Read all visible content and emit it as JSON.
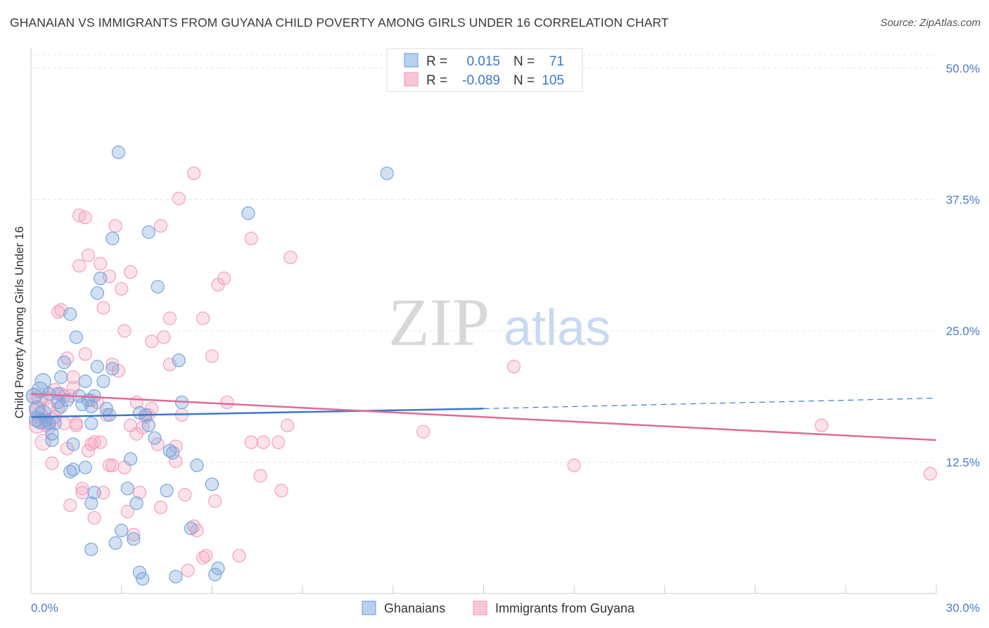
{
  "title": "GHANAIAN VS IMMIGRANTS FROM GUYANA CHILD POVERTY AMONG GIRLS UNDER 16 CORRELATION CHART",
  "source": "Source: ZipAtlas.com",
  "watermark": {
    "zip": "ZIP",
    "atlas": "atlas"
  },
  "chart_data": {
    "type": "scatter",
    "title": "GHANAIAN VS IMMIGRANTS FROM GUYANA CHILD POVERTY AMONG GIRLS UNDER 16 CORRELATION CHART",
    "xlabel": "",
    "ylabel": "Child Poverty Among Girls Under 16",
    "xlim": [
      0,
      30
    ],
    "ylim": [
      0,
      50
    ],
    "x_tick_labels": [
      "0.0%",
      "30.0%"
    ],
    "y_ticks": [
      12.5,
      25.0,
      37.5,
      50.0
    ],
    "y_tick_labels": [
      "12.5%",
      "25.0%",
      "37.5%",
      "50.0%"
    ],
    "grid": true,
    "legend": {
      "placement": "top-center",
      "rows": [
        {
          "r_label": "R =",
          "r_value": "0.015",
          "n_label": "N =",
          "n_value": "71"
        },
        {
          "r_label": "R =",
          "r_value": "-0.089",
          "n_label": "N =",
          "n_value": "105"
        }
      ]
    },
    "series": [
      {
        "name": "Ghanaians",
        "color": "#7aa6dc",
        "line_color": "#3c78c8",
        "trend": {
          "x0": 0,
          "y0": 16.8,
          "x1": 15,
          "y1": 17.6,
          "dashed_to_x": 30,
          "dashed_to_y": 18.6
        },
        "points": [
          [
            0.1,
            18.8
          ],
          [
            0.2,
            17.6
          ],
          [
            0.2,
            16.6
          ],
          [
            0.3,
            16.4
          ],
          [
            0.4,
            20.2
          ],
          [
            0.4,
            17.2
          ],
          [
            0.5,
            16.5
          ],
          [
            0.6,
            19.0
          ],
          [
            0.6,
            16.2
          ],
          [
            0.7,
            15.2
          ],
          [
            0.7,
            14.6
          ],
          [
            0.8,
            16.2
          ],
          [
            0.9,
            19.0
          ],
          [
            0.9,
            18.2
          ],
          [
            1.0,
            17.8
          ],
          [
            1.0,
            20.6
          ],
          [
            1.1,
            22.0
          ],
          [
            1.2,
            18.4
          ],
          [
            1.3,
            26.6
          ],
          [
            1.3,
            11.6
          ],
          [
            1.4,
            11.8
          ],
          [
            1.4,
            14.2
          ],
          [
            1.5,
            24.4
          ],
          [
            1.6,
            18.8
          ],
          [
            1.7,
            18.0
          ],
          [
            1.8,
            12.0
          ],
          [
            1.8,
            20.2
          ],
          [
            1.9,
            18.4
          ],
          [
            2.0,
            16.2
          ],
          [
            2.0,
            17.8
          ],
          [
            2.1,
            18.8
          ],
          [
            2.2,
            21.6
          ],
          [
            2.0,
            8.6
          ],
          [
            2.1,
            9.6
          ],
          [
            2.0,
            4.2
          ],
          [
            2.2,
            28.6
          ],
          [
            2.3,
            30.0
          ],
          [
            2.4,
            20.2
          ],
          [
            2.5,
            17.6
          ],
          [
            2.6,
            17.0
          ],
          [
            2.7,
            33.8
          ],
          [
            2.7,
            21.4
          ],
          [
            2.8,
            4.8
          ],
          [
            2.9,
            42.0
          ],
          [
            3.0,
            6.0
          ],
          [
            3.2,
            10.0
          ],
          [
            3.3,
            12.8
          ],
          [
            3.4,
            5.2
          ],
          [
            3.5,
            8.6
          ],
          [
            3.6,
            17.2
          ],
          [
            3.6,
            2.0
          ],
          [
            3.7,
            1.4
          ],
          [
            3.8,
            17.0
          ],
          [
            3.9,
            16.0
          ],
          [
            3.9,
            34.4
          ],
          [
            4.1,
            14.8
          ],
          [
            4.2,
            29.2
          ],
          [
            4.5,
            9.8
          ],
          [
            4.6,
            13.6
          ],
          [
            4.7,
            13.4
          ],
          [
            4.8,
            1.6
          ],
          [
            4.9,
            22.2
          ],
          [
            5.0,
            18.2
          ],
          [
            5.3,
            6.2
          ],
          [
            5.5,
            12.2
          ],
          [
            6.0,
            10.4
          ],
          [
            6.1,
            1.8
          ],
          [
            6.2,
            2.4
          ],
          [
            7.2,
            36.2
          ],
          [
            11.8,
            40.0
          ],
          [
            0.3,
            19.4
          ]
        ]
      },
      {
        "name": "Immigrants from Guyana",
        "color": "#f4a0bc",
        "line_color": "#e06a98",
        "trend": {
          "x0": 0,
          "y0": 19.0,
          "x1": 30,
          "y1": 14.6
        },
        "points": [
          [
            0.1,
            18.8
          ],
          [
            0.2,
            17.4
          ],
          [
            0.2,
            16.0
          ],
          [
            0.3,
            17.0
          ],
          [
            0.4,
            16.4
          ],
          [
            0.4,
            14.4
          ],
          [
            0.5,
            16.0
          ],
          [
            0.5,
            18.6
          ],
          [
            0.6,
            17.8
          ],
          [
            0.7,
            12.4
          ],
          [
            0.7,
            16.6
          ],
          [
            0.8,
            16.8
          ],
          [
            0.8,
            19.4
          ],
          [
            0.9,
            26.8
          ],
          [
            1.0,
            27.0
          ],
          [
            1.0,
            19.0
          ],
          [
            1.1,
            18.8
          ],
          [
            1.2,
            22.4
          ],
          [
            1.2,
            13.8
          ],
          [
            1.3,
            8.4
          ],
          [
            1.4,
            20.6
          ],
          [
            1.4,
            19.6
          ],
          [
            1.5,
            16.0
          ],
          [
            1.6,
            36.0
          ],
          [
            1.6,
            31.2
          ],
          [
            1.7,
            10.0
          ],
          [
            1.7,
            9.6
          ],
          [
            1.8,
            22.8
          ],
          [
            1.8,
            35.8
          ],
          [
            1.9,
            32.2
          ],
          [
            1.9,
            13.6
          ],
          [
            2.0,
            14.2
          ],
          [
            2.0,
            18.4
          ],
          [
            2.1,
            14.4
          ],
          [
            2.1,
            7.2
          ],
          [
            2.2,
            18.2
          ],
          [
            2.3,
            31.4
          ],
          [
            2.4,
            27.2
          ],
          [
            2.4,
            9.6
          ],
          [
            2.6,
            30.2
          ],
          [
            2.6,
            12.2
          ],
          [
            2.7,
            21.8
          ],
          [
            2.7,
            12.2
          ],
          [
            2.8,
            35.0
          ],
          [
            2.9,
            21.2
          ],
          [
            3.0,
            29.0
          ],
          [
            3.1,
            12.0
          ],
          [
            3.1,
            25.0
          ],
          [
            3.2,
            7.8
          ],
          [
            3.3,
            30.6
          ],
          [
            3.3,
            16.0
          ],
          [
            3.4,
            5.6
          ],
          [
            3.5,
            15.2
          ],
          [
            3.6,
            9.6
          ],
          [
            3.7,
            15.8
          ],
          [
            3.8,
            16.8
          ],
          [
            3.9,
            17.0
          ],
          [
            4.0,
            17.6
          ],
          [
            4.0,
            24.0
          ],
          [
            4.2,
            14.2
          ],
          [
            4.3,
            35.0
          ],
          [
            4.3,
            8.2
          ],
          [
            4.4,
            24.4
          ],
          [
            4.6,
            21.8
          ],
          [
            4.6,
            26.2
          ],
          [
            4.8,
            14.0
          ],
          [
            4.8,
            12.6
          ],
          [
            4.9,
            37.6
          ],
          [
            5.0,
            17.0
          ],
          [
            5.1,
            9.4
          ],
          [
            5.2,
            2.2
          ],
          [
            5.4,
            40.0
          ],
          [
            5.4,
            6.4
          ],
          [
            5.5,
            6.0
          ],
          [
            5.7,
            26.2
          ],
          [
            5.7,
            3.4
          ],
          [
            5.8,
            3.6
          ],
          [
            6.0,
            22.6
          ],
          [
            6.1,
            8.8
          ],
          [
            6.2,
            29.4
          ],
          [
            6.4,
            30.0
          ],
          [
            6.5,
            18.2
          ],
          [
            6.9,
            3.6
          ],
          [
            7.3,
            33.8
          ],
          [
            7.3,
            14.4
          ],
          [
            7.6,
            11.2
          ],
          [
            7.7,
            14.4
          ],
          [
            8.2,
            14.4
          ],
          [
            8.3,
            9.8
          ],
          [
            8.5,
            16.0
          ],
          [
            8.6,
            32.0
          ],
          [
            13.0,
            15.4
          ],
          [
            16.0,
            21.6
          ],
          [
            18.0,
            12.2
          ],
          [
            26.2,
            16.0
          ],
          [
            29.8,
            11.4
          ],
          [
            1.5,
            16.2
          ],
          [
            0.6,
            15.8
          ],
          [
            2.3,
            14.4
          ],
          [
            3.5,
            18.2
          ],
          [
            0.9,
            17.6
          ],
          [
            1.1,
            16.2
          ],
          [
            0.3,
            18.6
          ],
          [
            2.5,
            17.0
          ],
          [
            1.3,
            18.8
          ]
        ]
      }
    ]
  },
  "bottom_legend": [
    {
      "label": "Ghanaians"
    },
    {
      "label": "Immigrants from Guyana"
    }
  ]
}
